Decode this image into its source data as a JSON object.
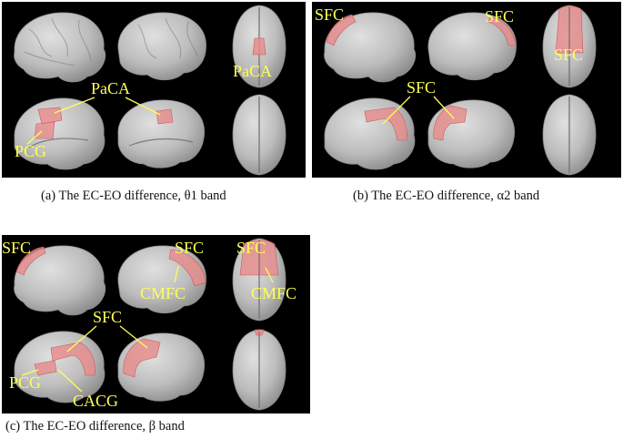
{
  "figure": {
    "panels": [
      {
        "caption": "(a) The EC-EO difference, θ1 band",
        "labels": {
          "paca_top": "PaCA",
          "paca_mid": "PaCA",
          "pcg": "PCG"
        }
      },
      {
        "caption": "(b) The EC-EO difference, α2 band",
        "labels": {
          "sfc_left": "SFC",
          "sfc_right": "SFC",
          "sfc_top": "SFC",
          "sfc_mid": "SFC"
        }
      },
      {
        "caption": "(c) The EC-EO difference, β band",
        "labels": {
          "sfc_left": "SFC",
          "sfc_right": "SFC",
          "cmfc_lat": "CMFC",
          "sfc_top": "SFC",
          "cmfc_top": "CMFC",
          "sfc_mid": "SFC",
          "pcg": "PCG",
          "cacg": "CACG"
        }
      }
    ],
    "colors": {
      "background": "#000000",
      "label": "#ffff55",
      "region": "#e88c8c",
      "brain": "#bdbdbd"
    }
  }
}
